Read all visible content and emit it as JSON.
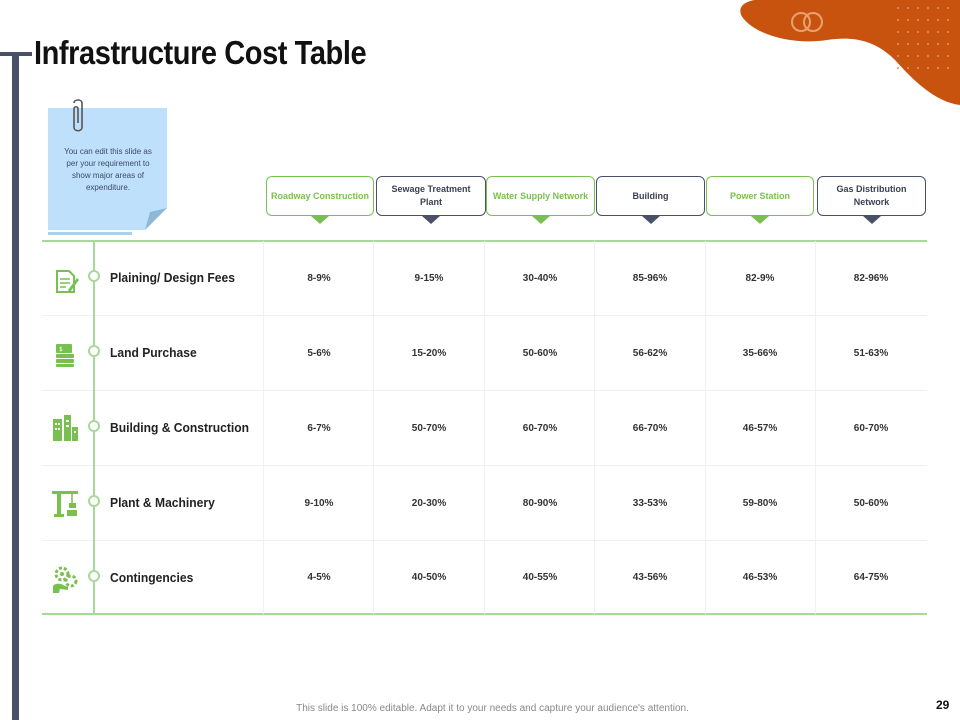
{
  "slide": {
    "title": "Infrastructure Cost Table",
    "note": "You can edit this slide as per your requirement to show major areas of expenditure.",
    "footer": "This slide is 100% editable. Adapt it to your needs and capture your audience's attention.",
    "page_number": "29"
  },
  "colors": {
    "accent_green": "#79c050",
    "dark": "#4a5068",
    "orange": "#c8530f",
    "note_blue": "#bfe0fb"
  },
  "columns": [
    {
      "label": "Roadway Construction",
      "style": "green"
    },
    {
      "label": "Sewage Treatment Plant",
      "style": "dark"
    },
    {
      "label": "Water Supply Network",
      "style": "green"
    },
    {
      "label": "Building",
      "style": "dark"
    },
    {
      "label": "Power Station",
      "style": "green"
    },
    {
      "label": "Gas Distribution Network",
      "style": "dark"
    }
  ],
  "rows": [
    {
      "label": "Plaining/ Design Fees",
      "icon": "document-pen-icon",
      "values": [
        "8-9%",
        "9-15%",
        "30-40%",
        "85-96%",
        "82-9%",
        "82-96%"
      ]
    },
    {
      "label": "Land Purchase",
      "icon": "money-stack-icon",
      "values": [
        "5-6%",
        "15-20%",
        "50-60%",
        "56-62%",
        "35-66%",
        "51-63%"
      ]
    },
    {
      "label": "Building & Construction",
      "icon": "buildings-icon",
      "values": [
        "6-7%",
        "50-70%",
        "60-70%",
        "66-70%",
        "46-57%",
        "60-70%"
      ]
    },
    {
      "label": "Plant & Machinery",
      "icon": "crane-icon",
      "values": [
        "9-10%",
        "20-30%",
        "80-90%",
        "33-53%",
        "59-80%",
        "50-60%"
      ]
    },
    {
      "label": "Contingencies",
      "icon": "gears-icon",
      "values": [
        "4-5%",
        "40-50%",
        "40-55%",
        "43-56%",
        "46-53%",
        "64-75%"
      ]
    }
  ]
}
